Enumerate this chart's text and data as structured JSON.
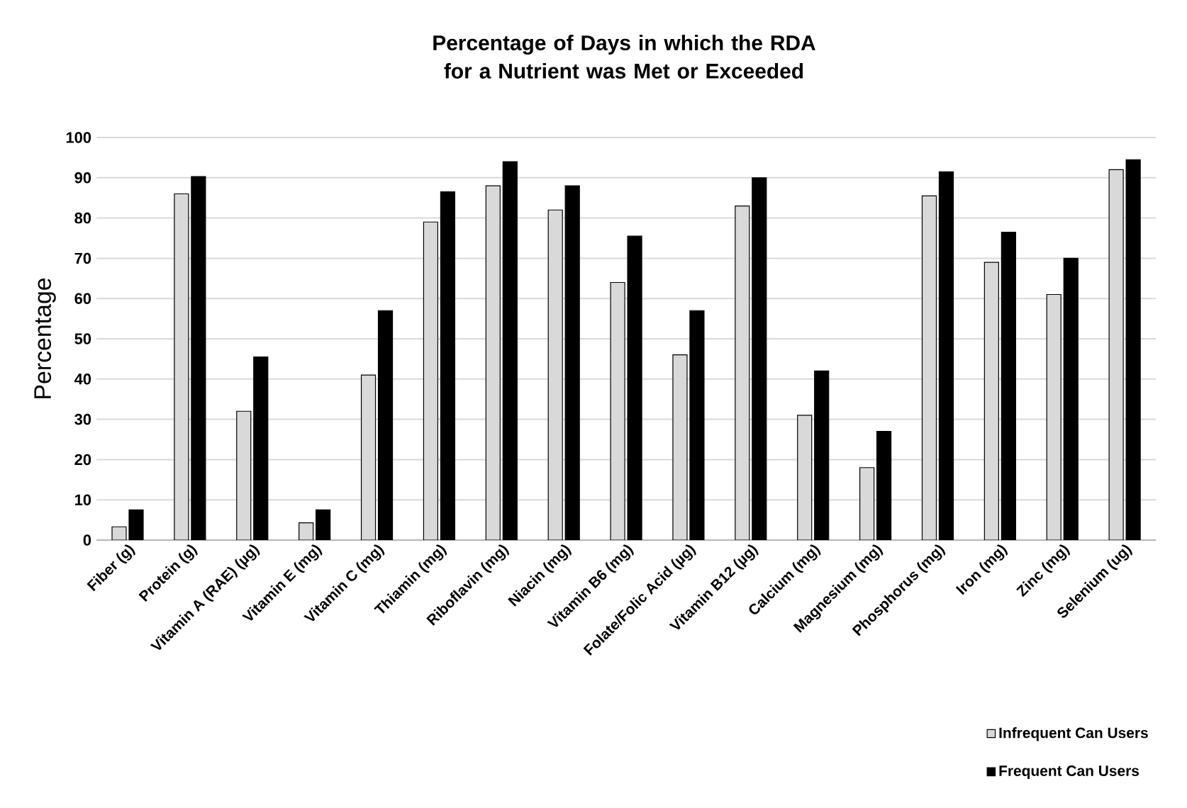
{
  "chart_data": {
    "type": "bar",
    "title": "Percentage of Days in which the RDA for a Nutrient was Met or Exceeded",
    "ylabel": "Percentage",
    "categories": [
      "Fiber (g)",
      "Protein (g)",
      "Vitamin A (RAE) (µg)",
      "Vitamin E (mg)",
      "Vitamin C (mg)",
      "Thiamin (mg)",
      "Riboflavin (mg)",
      "Niacin (mg)",
      "Vitamin B6 (mg)",
      "Folate/Folic Acid (µg)",
      "Vitamin B12 (µg)",
      "Calcium (mg)",
      "Magnesium (mg)",
      "Phosphorus (mg)",
      "Iron (mg)",
      "Zinc (mg)",
      "Selenium (ug)"
    ],
    "series": [
      {
        "name": "Infrequent Can Users",
        "color": "#d9d9d9",
        "values": [
          3.3,
          86,
          32,
          4.3,
          41,
          79,
          88,
          82,
          64,
          46,
          83,
          31,
          18,
          85.5,
          69,
          61,
          92
        ]
      },
      {
        "name": "Frequent Can Users",
        "color": "#000000",
        "values": [
          7.5,
          90.3,
          45.5,
          7.5,
          57,
          86.5,
          94,
          88,
          75.5,
          57,
          90,
          42,
          27,
          91.5,
          76.5,
          70,
          94.5
        ]
      }
    ],
    "ylim": [
      0,
      100
    ],
    "yticks": [
      0,
      10,
      20,
      30,
      40,
      50,
      60,
      70,
      80,
      90,
      100
    ],
    "grid": "y",
    "legend": "bottom right"
  }
}
